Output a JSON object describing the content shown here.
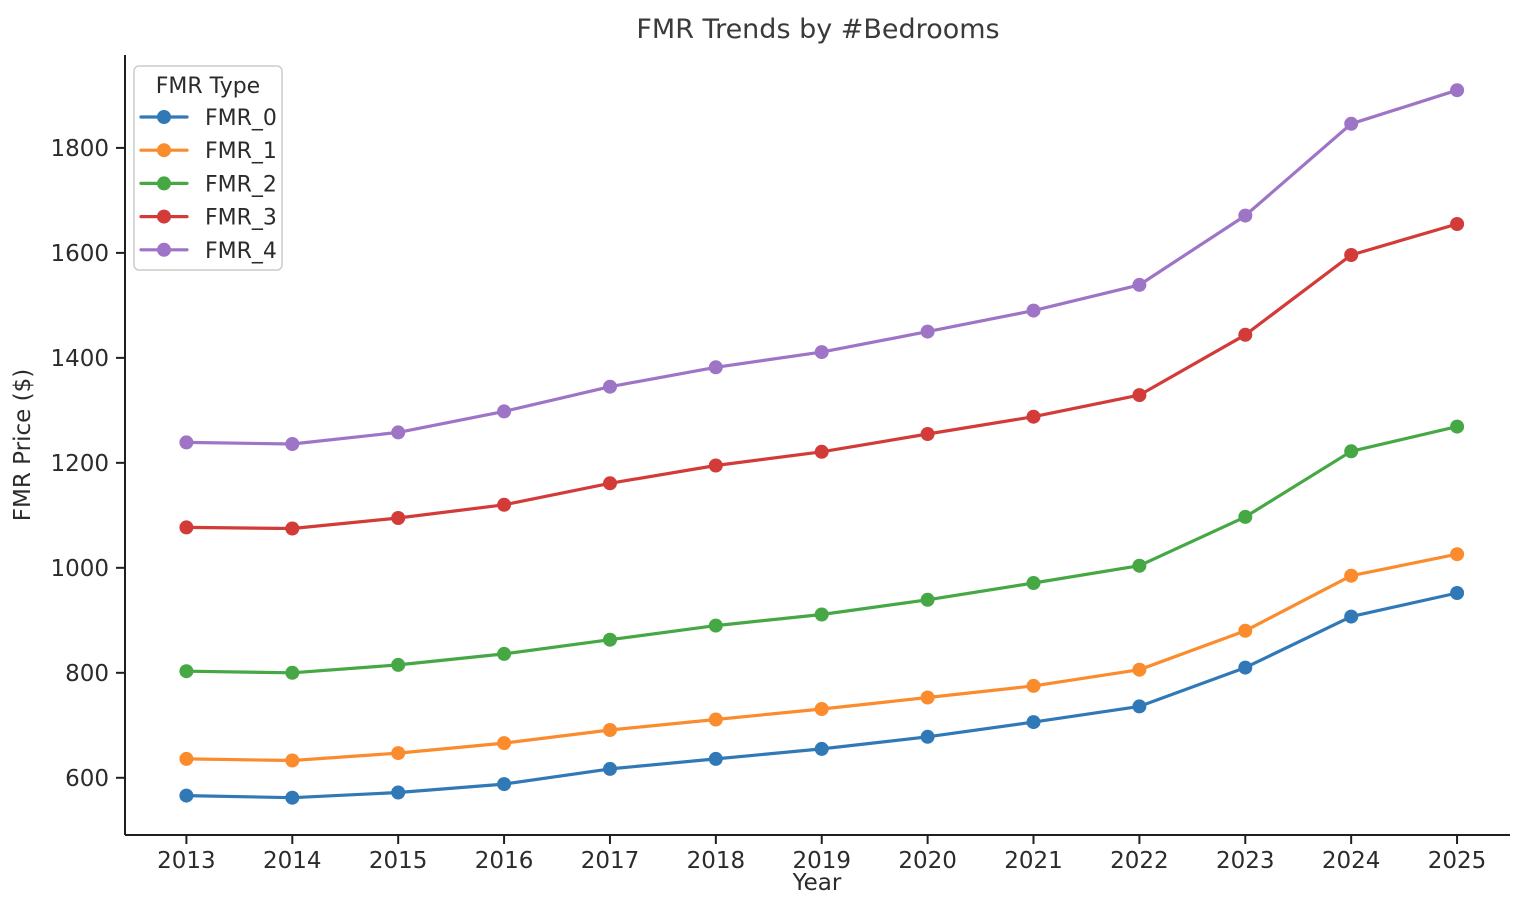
{
  "chart_data": {
    "type": "line",
    "title": "FMR Trends by #Bedrooms",
    "xlabel": "Year",
    "ylabel": "FMR Price ($)",
    "legend_title": "FMR Type",
    "legend_position": "upper left",
    "grid": false,
    "x": [
      2013,
      2014,
      2015,
      2016,
      2017,
      2018,
      2019,
      2020,
      2021,
      2022,
      2023,
      2024,
      2025
    ],
    "x_ticks": [
      2013,
      2014,
      2015,
      2016,
      2017,
      2018,
      2019,
      2020,
      2021,
      2022,
      2023,
      2024,
      2025
    ],
    "y_ticks": [
      600,
      800,
      1000,
      1200,
      1400,
      1600,
      1800
    ],
    "xlim": [
      2012.42,
      2025.5
    ],
    "ylim": [
      491,
      1977
    ],
    "series": [
      {
        "name": "FMR_0",
        "color": "#3079b6",
        "values": [
          566,
          562,
          572,
          588,
          617,
          636,
          655,
          678,
          706,
          736,
          810,
          907,
          952
        ]
      },
      {
        "name": "FMR_1",
        "color": "#fb8c2d",
        "values": [
          636,
          633,
          647,
          666,
          691,
          711,
          731,
          753,
          775,
          806,
          880,
          985,
          1026
        ]
      },
      {
        "name": "FMR_2",
        "color": "#45a845",
        "values": [
          803,
          800,
          815,
          836,
          863,
          890,
          911,
          939,
          971,
          1004,
          1097,
          1222,
          1269
        ]
      },
      {
        "name": "FMR_3",
        "color": "#d23b38",
        "values": [
          1077,
          1075,
          1095,
          1120,
          1161,
          1195,
          1221,
          1255,
          1288,
          1329,
          1444,
          1596,
          1655
        ]
      },
      {
        "name": "FMR_4",
        "color": "#9e74c6",
        "values": [
          1239,
          1236,
          1258,
          1298,
          1345,
          1382,
          1411,
          1450,
          1490,
          1539,
          1671,
          1846,
          1910
        ]
      }
    ],
    "colors": {
      "text": "#2b2b2b",
      "title_text": "#3a3a3a",
      "spine": "#1f1f1f",
      "legend_border": "#cccccc",
      "legend_bg": "#ffffff"
    }
  }
}
